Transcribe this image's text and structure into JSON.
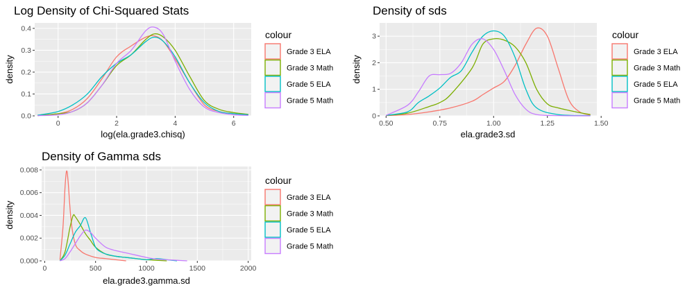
{
  "palette": {
    "Grade 3 ELA": "#F8766D",
    "Grade 3 Math": "#7CAE00",
    "Grade 5 ELA": "#00BFC4",
    "Grade 5 Math": "#C77CFF",
    "panel_bg": "#EBEBEB",
    "grid": "#FFFFFF"
  },
  "chart_data": [
    {
      "type": "line",
      "title": "Log Density of Chi-Squared Stats",
      "xlabel": "log(ela.grade3.chisq)",
      "ylabel": "density",
      "xlim": [
        -0.8,
        6.6
      ],
      "ylim": [
        0,
        0.425
      ],
      "xticks": [
        0,
        2,
        4,
        6
      ],
      "xtick_labels": [
        "0",
        "2",
        "4",
        "6"
      ],
      "yticks": [
        0.0,
        0.1,
        0.2,
        0.3,
        0.4
      ],
      "ytick_labels": [
        "0.0",
        "0.1",
        "0.2",
        "0.3",
        "0.4"
      ],
      "grid": true,
      "legend_title": "colour",
      "legend_position": "right",
      "series": [
        {
          "name": "Grade 3 ELA",
          "x": [
            -0.7,
            0,
            0.5,
            1.0,
            1.5,
            2.0,
            2.5,
            3.0,
            3.3,
            3.6,
            4.0,
            4.5,
            5.0,
            5.5,
            6.0,
            6.5
          ],
          "y": [
            0.002,
            0.01,
            0.03,
            0.08,
            0.17,
            0.27,
            0.32,
            0.36,
            0.365,
            0.34,
            0.26,
            0.15,
            0.05,
            0.02,
            0.01,
            0.005
          ]
        },
        {
          "name": "Grade 3 Math",
          "x": [
            -0.7,
            0,
            0.5,
            1.0,
            1.5,
            2.0,
            2.5,
            3.0,
            3.3,
            3.6,
            4.0,
            4.5,
            5.0,
            5.5,
            6.0,
            6.5
          ],
          "y": [
            0.001,
            0.01,
            0.02,
            0.06,
            0.14,
            0.23,
            0.28,
            0.35,
            0.375,
            0.36,
            0.3,
            0.18,
            0.07,
            0.03,
            0.015,
            0.007
          ]
        },
        {
          "name": "Grade 5 ELA",
          "x": [
            -0.7,
            0,
            0.5,
            1.0,
            1.5,
            2.0,
            2.5,
            3.0,
            3.3,
            3.6,
            4.0,
            4.5,
            5.0,
            5.5,
            6.0,
            6.5
          ],
          "y": [
            0.003,
            0.02,
            0.05,
            0.1,
            0.18,
            0.24,
            0.28,
            0.34,
            0.36,
            0.34,
            0.27,
            0.15,
            0.06,
            0.02,
            0.01,
            0.005
          ]
        },
        {
          "name": "Grade 5 Math",
          "x": [
            -0.7,
            0,
            0.5,
            1.0,
            1.5,
            2.0,
            2.5,
            3.0,
            3.3,
            3.6,
            4.0,
            4.5,
            5.0,
            5.5,
            6.0,
            6.5
          ],
          "y": [
            0.001,
            0.005,
            0.02,
            0.06,
            0.14,
            0.24,
            0.3,
            0.39,
            0.405,
            0.37,
            0.25,
            0.12,
            0.04,
            0.015,
            0.005,
            0.002
          ]
        }
      ]
    },
    {
      "type": "line",
      "title": "Density of sds",
      "xlabel": "ela.grade3.sd",
      "ylabel": "density",
      "xlim": [
        0.47,
        1.48
      ],
      "ylim": [
        0,
        3.5
      ],
      "xticks": [
        0.5,
        0.75,
        1.0,
        1.25,
        1.5
      ],
      "xtick_labels": [
        "0.50",
        "0.75",
        "1.00",
        "1.25",
        "1.50"
      ],
      "yticks": [
        0,
        1,
        2,
        3
      ],
      "ytick_labels": [
        "0",
        "1",
        "2",
        "3"
      ],
      "grid": true,
      "legend_title": "colour",
      "legend_position": "right",
      "series": [
        {
          "name": "Grade 3 ELA",
          "x": [
            0.5,
            0.6,
            0.7,
            0.8,
            0.9,
            0.95,
            1.0,
            1.05,
            1.1,
            1.15,
            1.2,
            1.25,
            1.3,
            1.35,
            1.4,
            1.45
          ],
          "y": [
            0.01,
            0.05,
            0.15,
            0.3,
            0.55,
            0.8,
            1.05,
            1.3,
            1.9,
            2.7,
            3.3,
            3.0,
            1.8,
            0.6,
            0.15,
            0.03
          ]
        },
        {
          "name": "Grade 3 Math",
          "x": [
            0.5,
            0.6,
            0.7,
            0.75,
            0.8,
            0.9,
            0.95,
            1.0,
            1.05,
            1.1,
            1.15,
            1.2,
            1.25,
            1.3,
            1.4,
            1.45
          ],
          "y": [
            0.02,
            0.1,
            0.35,
            0.5,
            0.8,
            1.8,
            2.7,
            2.9,
            2.85,
            2.6,
            2.0,
            1.0,
            0.45,
            0.3,
            0.12,
            0.05
          ]
        },
        {
          "name": "Grade 5 ELA",
          "x": [
            0.5,
            0.6,
            0.65,
            0.7,
            0.75,
            0.8,
            0.85,
            0.9,
            0.95,
            1.0,
            1.05,
            1.1,
            1.15,
            1.2,
            1.3,
            1.45
          ],
          "y": [
            0.02,
            0.15,
            0.5,
            0.75,
            1.05,
            1.45,
            1.7,
            2.4,
            3.0,
            3.2,
            3.0,
            2.2,
            1.0,
            0.3,
            0.05,
            0.01
          ]
        },
        {
          "name": "Grade 5 Math",
          "x": [
            0.5,
            0.6,
            0.65,
            0.7,
            0.75,
            0.8,
            0.85,
            0.9,
            0.95,
            1.0,
            1.05,
            1.1,
            1.15,
            1.2,
            1.3,
            1.45
          ],
          "y": [
            0.02,
            0.4,
            0.9,
            1.5,
            1.55,
            1.6,
            2.0,
            2.7,
            2.9,
            2.5,
            1.7,
            0.8,
            0.25,
            0.05,
            0.01,
            0.0
          ]
        }
      ]
    },
    {
      "type": "line",
      "title": "Density of Gamma sds",
      "xlabel": "ela.grade3.gamma.sd",
      "ylabel": "density",
      "xlim": [
        -30,
        2030
      ],
      "ylim": [
        0,
        0.0083
      ],
      "xticks": [
        0,
        500,
        1000,
        1500,
        2000
      ],
      "xtick_labels": [
        "0",
        "500",
        "1000",
        "1500",
        "2000"
      ],
      "yticks": [
        0,
        0.002,
        0.004,
        0.006,
        0.008
      ],
      "ytick_labels": [
        "0.000",
        "0.002",
        "0.004",
        "0.006",
        "0.008"
      ],
      "grid": true,
      "legend_title": "colour",
      "legend_position": "right",
      "series": [
        {
          "name": "Grade 3 ELA",
          "x": [
            150,
            180,
            200,
            215,
            230,
            260,
            300,
            350,
            400,
            500,
            600,
            700,
            800
          ],
          "y": [
            0.0001,
            0.003,
            0.0065,
            0.0079,
            0.007,
            0.0035,
            0.0015,
            0.0009,
            0.0006,
            0.0003,
            0.0002,
            0.0001,
            0.0
          ]
        },
        {
          "name": "Grade 3 Math",
          "x": [
            150,
            200,
            250,
            280,
            300,
            350,
            400,
            450,
            500,
            600,
            700,
            800,
            900,
            1000,
            1100,
            1200
          ],
          "y": [
            0.0,
            0.0008,
            0.003,
            0.004,
            0.0039,
            0.0032,
            0.0024,
            0.0018,
            0.0012,
            0.0006,
            0.0004,
            0.0003,
            0.0002,
            0.0001,
            5e-05,
            0.0
          ]
        },
        {
          "name": "Grade 5 ELA",
          "x": [
            150,
            200,
            250,
            300,
            350,
            400,
            450,
            500,
            550,
            600,
            700,
            800,
            900,
            1000,
            1100,
            1200,
            1300
          ],
          "y": [
            0.0,
            0.0005,
            0.0015,
            0.0025,
            0.0031,
            0.0038,
            0.0025,
            0.0012,
            0.0008,
            0.0006,
            0.0004,
            0.0003,
            0.0002,
            0.0001,
            0.0002,
            0.0001,
            0.0
          ]
        },
        {
          "name": "Grade 5 Math",
          "x": [
            150,
            200,
            250,
            300,
            350,
            400,
            450,
            500,
            600,
            700,
            800,
            900,
            1000,
            1100,
            1200,
            1300,
            1400
          ],
          "y": [
            0.0,
            0.0002,
            0.0008,
            0.0015,
            0.0022,
            0.0027,
            0.0025,
            0.002,
            0.0012,
            0.0009,
            0.0007,
            0.0005,
            0.0003,
            0.00015,
            0.0001,
            5e-05,
            0.0
          ]
        }
      ]
    }
  ]
}
